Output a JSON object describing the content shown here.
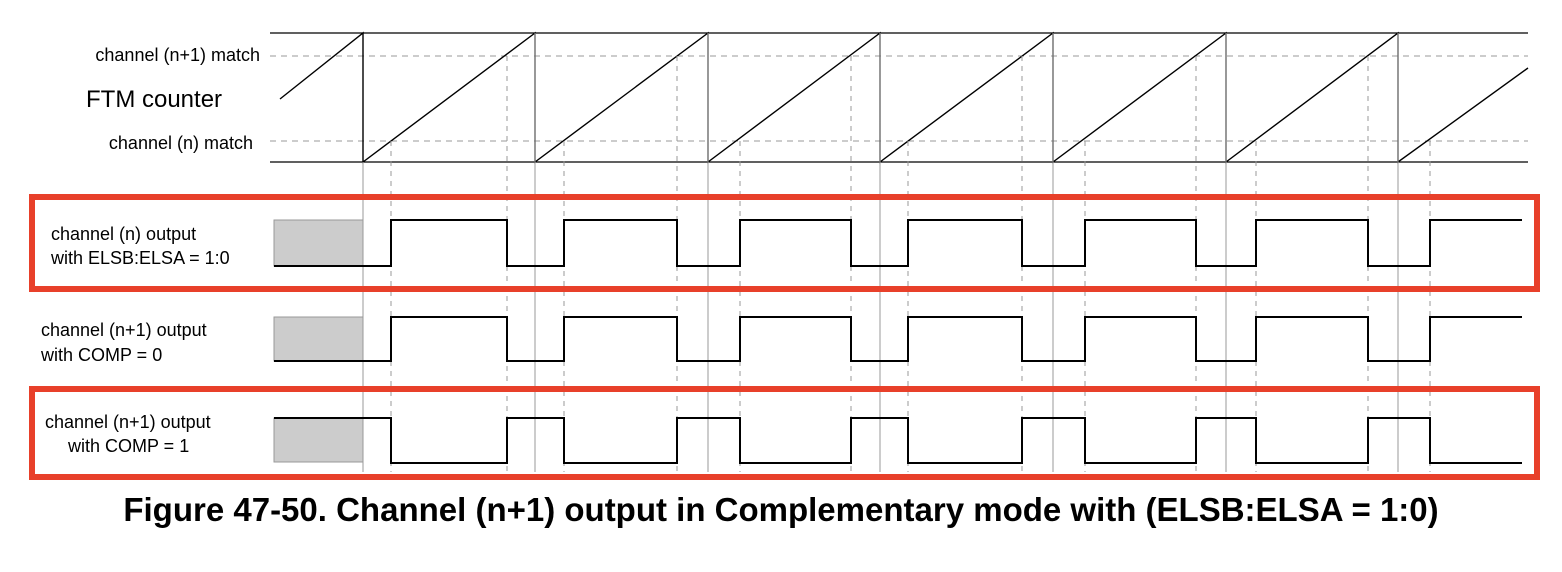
{
  "counter": {
    "top_label": "channel (n+1) match",
    "title": "FTM counter",
    "bottom_label": "channel (n) match"
  },
  "signals": [
    {
      "line1": "channel (n) output",
      "line2": "with ELSB:ELSA = 1:0",
      "highlighted": true
    },
    {
      "line1": "channel (n+1) output",
      "line2": "with COMP = 0",
      "highlighted": false
    },
    {
      "line1": "channel (n+1) output",
      "line2": "with COMP = 1",
      "highlighted": true
    }
  ],
  "caption": "Figure 47-50. Channel (n+1) output in Complementary mode with (ELSB:ELSA = 1:0)",
  "colors": {
    "highlight_border": "#e8402a",
    "unknown_fill": "#cccccc",
    "line": "#000000",
    "guide": "#999999"
  }
}
